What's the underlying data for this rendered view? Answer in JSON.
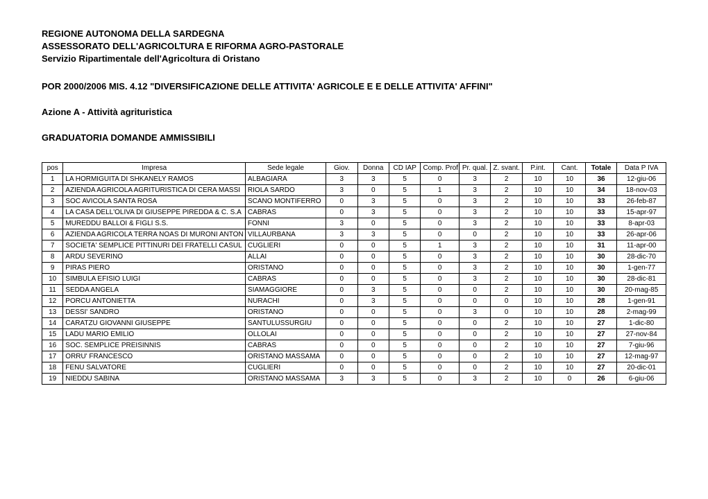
{
  "header": {
    "line1": "REGIONE AUTONOMA DELLA SARDEGNA",
    "line2": "ASSESSORATO DELL'AGRICOLTURA E RIFORMA AGRO-PASTORALE",
    "line3": "Servizio Ripartimentale dell'Agricoltura di Oristano",
    "program": "POR 2000/2006 MIS. 4.12 \"DIVERSIFICAZIONE DELLE ATTIVITA' AGRICOLE E E DELLE ATTIVITA' AFFINI\"",
    "action": "Azione A - Attività agrituristica",
    "ranking": "GRADUATORIA DOMANDE AMMISSIBILI"
  },
  "table": {
    "columns": [
      "pos",
      "Impresa",
      "Sede legale",
      "Giov.",
      "Donna",
      "CD IAP",
      "Comp. Prof",
      "Pr. qual.",
      "Z. svant.",
      "P.int.",
      "Cant.",
      "Totale",
      "Data P IVA"
    ],
    "rows": [
      [
        "1",
        "LA HORMIGUITA DI SHKANELY RAMOS",
        "ALBAGIARA",
        "3",
        "3",
        "5",
        "0",
        "3",
        "2",
        "10",
        "10",
        "36",
        "12-giu-06"
      ],
      [
        "2",
        "AZIENDA AGRICOLA AGRITURISTICA DI CERA MASSI",
        "RIOLA SARDO",
        "3",
        "0",
        "5",
        "1",
        "3",
        "2",
        "10",
        "10",
        "34",
        "18-nov-03"
      ],
      [
        "3",
        "SOC AVICOLA SANTA ROSA",
        "SCANO MONTIFERRO",
        "0",
        "3",
        "5",
        "0",
        "3",
        "2",
        "10",
        "10",
        "33",
        "26-feb-87"
      ],
      [
        "4",
        "LA CASA DELL'OLIVA DI GIUSEPPE PIREDDA & C. S.A",
        "CABRAS",
        "0",
        "3",
        "5",
        "0",
        "3",
        "2",
        "10",
        "10",
        "33",
        "15-apr-97"
      ],
      [
        "5",
        "MUREDDU BALLOI & FIGLI S.S.",
        "FONNI",
        "3",
        "0",
        "5",
        "0",
        "3",
        "2",
        "10",
        "10",
        "33",
        "8-apr-03"
      ],
      [
        "6",
        "AZIENDA AGRICOLA TERRA NOAS DI MURONI ANTON",
        "VILLAURBANA",
        "3",
        "3",
        "5",
        "0",
        "0",
        "2",
        "10",
        "10",
        "33",
        "26-apr-06"
      ],
      [
        "7",
        "SOCIETA' SEMPLICE PITTINURI DEI FRATELLI CASUL",
        "CUGLIERI",
        "0",
        "0",
        "5",
        "1",
        "3",
        "2",
        "10",
        "10",
        "31",
        "11-apr-00"
      ],
      [
        "8",
        "ARDU SEVERINO",
        "ALLAI",
        "0",
        "0",
        "5",
        "0",
        "3",
        "2",
        "10",
        "10",
        "30",
        "28-dic-70"
      ],
      [
        "9",
        "PIRAS PIERO",
        "ORISTANO",
        "0",
        "0",
        "5",
        "0",
        "3",
        "2",
        "10",
        "10",
        "30",
        "1-gen-77"
      ],
      [
        "10",
        "SIMBULA EFISIO LUIGI",
        "CABRAS",
        "0",
        "0",
        "5",
        "0",
        "3",
        "2",
        "10",
        "10",
        "30",
        "28-dic-81"
      ],
      [
        "11",
        "SEDDA ANGELA",
        "SIAMAGGIORE",
        "0",
        "3",
        "5",
        "0",
        "0",
        "2",
        "10",
        "10",
        "30",
        "20-mag-85"
      ],
      [
        "12",
        "PORCU ANTONIETTA",
        "NURACHI",
        "0",
        "3",
        "5",
        "0",
        "0",
        "0",
        "10",
        "10",
        "28",
        "1-gen-91"
      ],
      [
        "13",
        "DESSI' SANDRO",
        "ORISTANO",
        "0",
        "0",
        "5",
        "0",
        "3",
        "0",
        "10",
        "10",
        "28",
        "2-mag-99"
      ],
      [
        "14",
        "CARATZU GIOVANNI GIUSEPPE",
        "SANTULUSSURGIU",
        "0",
        "0",
        "5",
        "0",
        "0",
        "2",
        "10",
        "10",
        "27",
        "1-dic-80"
      ],
      [
        "15",
        "LADU MARIO EMILIO",
        "OLLOLAI",
        "0",
        "0",
        "5",
        "0",
        "0",
        "2",
        "10",
        "10",
        "27",
        "27-nov-84"
      ],
      [
        "16",
        "SOC. SEMPLICE PREISINNIS",
        "CABRAS",
        "0",
        "0",
        "5",
        "0",
        "0",
        "2",
        "10",
        "10",
        "27",
        "7-giu-96"
      ],
      [
        "17",
        "ORRU' FRANCESCO",
        "ORISTANO MASSAMA",
        "0",
        "0",
        "5",
        "0",
        "0",
        "2",
        "10",
        "10",
        "27",
        "12-mag-97"
      ],
      [
        "18",
        "FENU SALVATORE",
        "CUGLIERI",
        "0",
        "0",
        "5",
        "0",
        "0",
        "2",
        "10",
        "10",
        "27",
        "20-dic-01"
      ],
      [
        "19",
        "NIEDDU SABINA",
        "ORISTANO MASSAMA",
        "3",
        "3",
        "5",
        "0",
        "3",
        "2",
        "10",
        "0",
        "26",
        "6-giu-06"
      ]
    ]
  }
}
